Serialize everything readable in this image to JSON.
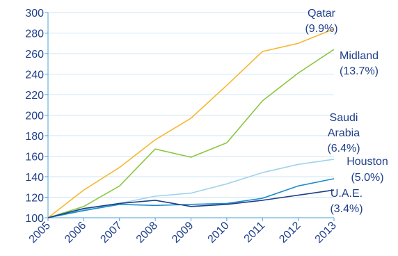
{
  "chart_data": {
    "type": "line",
    "x": [
      "2005",
      "2006",
      "2007",
      "2008",
      "2009",
      "2010",
      "2011",
      "2012",
      "2013"
    ],
    "ylim": [
      100,
      300
    ],
    "yticks": [
      "100",
      "120",
      "140",
      "160",
      "180",
      "200",
      "220",
      "240",
      "260",
      "280",
      "300"
    ],
    "grid": true,
    "series": [
      {
        "name": "Qatar",
        "sublabel": "(9.9%)",
        "color": "#f7b731",
        "values": [
          100,
          127,
          149,
          176,
          197,
          229,
          262,
          270,
          284
        ]
      },
      {
        "name": "Midland",
        "sublabel": "(13.7%)",
        "color": "#8cc63f",
        "values": [
          100,
          111,
          131,
          167,
          159,
          173,
          214,
          241,
          264
        ]
      },
      {
        "name": "Saudi Arabia",
        "sublabel": "(6.4%)",
        "color": "#9fd3ec",
        "values": [
          100,
          108,
          114,
          121,
          124,
          133,
          144,
          152,
          157
        ]
      },
      {
        "name": "Houston",
        "sublabel": "(5.0%)",
        "color": "#1a8ccc",
        "values": [
          100,
          107,
          113,
          112,
          113,
          114,
          119,
          131,
          138
        ]
      },
      {
        "name": "U.A.E.",
        "sublabel": "(3.4%)",
        "color": "#1f3f8a",
        "values": [
          100,
          109,
          114,
          117,
          111,
          113,
          117,
          122,
          127
        ]
      }
    ]
  }
}
